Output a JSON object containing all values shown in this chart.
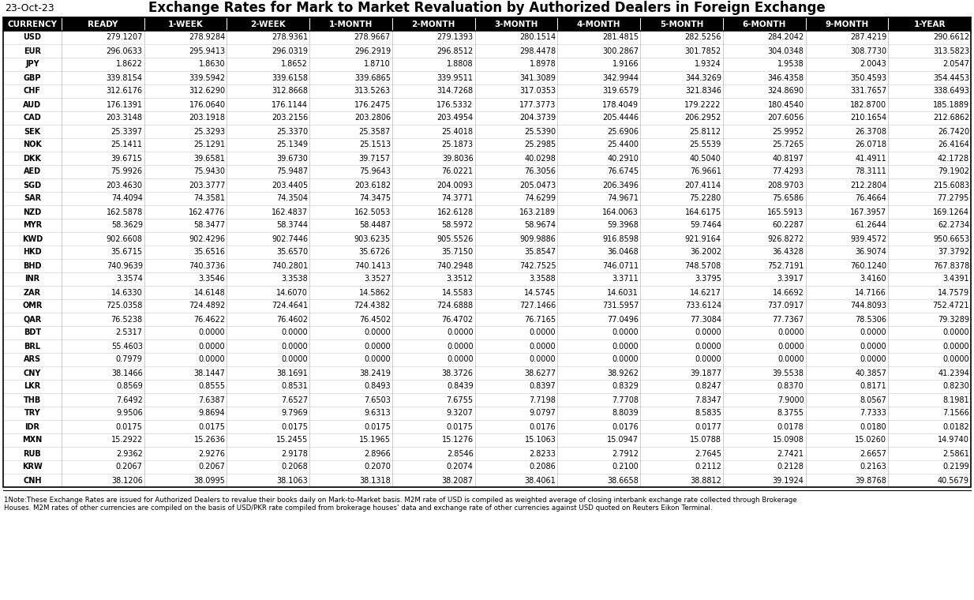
{
  "date": "23-Oct-23",
  "title": "Exchange Rates for Mark to Market Revaluation by Authorized Dealers in Foreign Exchange",
  "columns": [
    "CURRENCY",
    "READY",
    "1-WEEK",
    "2-WEEK",
    "1-MONTH",
    "2-MONTH",
    "3-MONTH",
    "4-MONTH",
    "5-MONTH",
    "6-MONTH",
    "9-MONTH",
    "1-YEAR"
  ],
  "rows": [
    [
      "USD",
      "279.1207",
      "278.9284",
      "278.9361",
      "278.9667",
      "279.1393",
      "280.1514",
      "281.4815",
      "282.5256",
      "284.2042",
      "287.4219",
      "290.6612"
    ],
    [
      "EUR",
      "296.0633",
      "295.9413",
      "296.0319",
      "296.2919",
      "296.8512",
      "298.4478",
      "300.2867",
      "301.7852",
      "304.0348",
      "308.7730",
      "313.5823"
    ],
    [
      "JPY",
      "1.8622",
      "1.8630",
      "1.8652",
      "1.8710",
      "1.8808",
      "1.8978",
      "1.9166",
      "1.9324",
      "1.9538",
      "2.0043",
      "2.0547"
    ],
    [
      "GBP",
      "339.8154",
      "339.5942",
      "339.6158",
      "339.6865",
      "339.9511",
      "341.3089",
      "342.9944",
      "344.3269",
      "346.4358",
      "350.4593",
      "354.4453"
    ],
    [
      "CHF",
      "312.6176",
      "312.6290",
      "312.8668",
      "313.5263",
      "314.7268",
      "317.0353",
      "319.6579",
      "321.8346",
      "324.8690",
      "331.7657",
      "338.6493"
    ],
    [
      "AUD",
      "176.1391",
      "176.0640",
      "176.1144",
      "176.2475",
      "176.5332",
      "177.3773",
      "178.4049",
      "179.2222",
      "180.4540",
      "182.8700",
      "185.1889"
    ],
    [
      "CAD",
      "203.3148",
      "203.1918",
      "203.2156",
      "203.2806",
      "203.4954",
      "204.3739",
      "205.4446",
      "206.2952",
      "207.6056",
      "210.1654",
      "212.6862"
    ],
    [
      "SEK",
      "25.3397",
      "25.3293",
      "25.3370",
      "25.3587",
      "25.4018",
      "25.5390",
      "25.6906",
      "25.8112",
      "25.9952",
      "26.3708",
      "26.7420"
    ],
    [
      "NOK",
      "25.1411",
      "25.1291",
      "25.1349",
      "25.1513",
      "25.1873",
      "25.2985",
      "25.4400",
      "25.5539",
      "25.7265",
      "26.0718",
      "26.4164"
    ],
    [
      "DKK",
      "39.6715",
      "39.6581",
      "39.6730",
      "39.7157",
      "39.8036",
      "40.0298",
      "40.2910",
      "40.5040",
      "40.8197",
      "41.4911",
      "42.1728"
    ],
    [
      "AED",
      "75.9926",
      "75.9430",
      "75.9487",
      "75.9643",
      "76.0221",
      "76.3056",
      "76.6745",
      "76.9661",
      "77.4293",
      "78.3111",
      "79.1902"
    ],
    [
      "SGD",
      "203.4630",
      "203.3777",
      "203.4405",
      "203.6182",
      "204.0093",
      "205.0473",
      "206.3496",
      "207.4114",
      "208.9703",
      "212.2804",
      "215.6083"
    ],
    [
      "SAR",
      "74.4094",
      "74.3581",
      "74.3504",
      "74.3475",
      "74.3771",
      "74.6299",
      "74.9671",
      "75.2280",
      "75.6586",
      "76.4664",
      "77.2795"
    ],
    [
      "NZD",
      "162.5878",
      "162.4776",
      "162.4837",
      "162.5053",
      "162.6128",
      "163.2189",
      "164.0063",
      "164.6175",
      "165.5913",
      "167.3957",
      "169.1264"
    ],
    [
      "MYR",
      "58.3629",
      "58.3477",
      "58.3744",
      "58.4487",
      "58.5972",
      "58.9674",
      "59.3968",
      "59.7464",
      "60.2287",
      "61.2644",
      "62.2734"
    ],
    [
      "KWD",
      "902.6608",
      "902.4296",
      "902.7446",
      "903.6235",
      "905.5526",
      "909.9886",
      "916.8598",
      "921.9164",
      "926.8272",
      "939.4572",
      "950.6653"
    ],
    [
      "HKD",
      "35.6715",
      "35.6516",
      "35.6570",
      "35.6726",
      "35.7150",
      "35.8547",
      "36.0468",
      "36.2002",
      "36.4328",
      "36.9074",
      "37.3792"
    ],
    [
      "BHD",
      "740.9639",
      "740.3736",
      "740.2801",
      "740.1413",
      "740.2948",
      "742.7525",
      "746.0711",
      "748.5708",
      "752.7191",
      "760.1240",
      "767.8378"
    ],
    [
      "INR",
      "3.3574",
      "3.3546",
      "3.3538",
      "3.3527",
      "3.3512",
      "3.3588",
      "3.3711",
      "3.3795",
      "3.3917",
      "3.4160",
      "3.4391"
    ],
    [
      "ZAR",
      "14.6330",
      "14.6148",
      "14.6070",
      "14.5862",
      "14.5583",
      "14.5745",
      "14.6031",
      "14.6217",
      "14.6692",
      "14.7166",
      "14.7579"
    ],
    [
      "OMR",
      "725.0358",
      "724.4892",
      "724.4641",
      "724.4382",
      "724.6888",
      "727.1466",
      "731.5957",
      "733.6124",
      "737.0917",
      "744.8093",
      "752.4721"
    ],
    [
      "QAR",
      "76.5238",
      "76.4622",
      "76.4602",
      "76.4502",
      "76.4702",
      "76.7165",
      "77.0496",
      "77.3084",
      "77.7367",
      "78.5306",
      "79.3289"
    ],
    [
      "BDT",
      "2.5317",
      "0.0000",
      "0.0000",
      "0.0000",
      "0.0000",
      "0.0000",
      "0.0000",
      "0.0000",
      "0.0000",
      "0.0000",
      "0.0000"
    ],
    [
      "BRL",
      "55.4603",
      "0.0000",
      "0.0000",
      "0.0000",
      "0.0000",
      "0.0000",
      "0.0000",
      "0.0000",
      "0.0000",
      "0.0000",
      "0.0000"
    ],
    [
      "ARS",
      "0.7979",
      "0.0000",
      "0.0000",
      "0.0000",
      "0.0000",
      "0.0000",
      "0.0000",
      "0.0000",
      "0.0000",
      "0.0000",
      "0.0000"
    ],
    [
      "CNY",
      "38.1466",
      "38.1447",
      "38.1691",
      "38.2419",
      "38.3726",
      "38.6277",
      "38.9262",
      "39.1877",
      "39.5538",
      "40.3857",
      "41.2394"
    ],
    [
      "LKR",
      "0.8569",
      "0.8555",
      "0.8531",
      "0.8493",
      "0.8439",
      "0.8397",
      "0.8329",
      "0.8247",
      "0.8370",
      "0.8171",
      "0.8230"
    ],
    [
      "THB",
      "7.6492",
      "7.6387",
      "7.6527",
      "7.6503",
      "7.6755",
      "7.7198",
      "7.7708",
      "7.8347",
      "7.9000",
      "8.0567",
      "8.1981"
    ],
    [
      "TRY",
      "9.9506",
      "9.8694",
      "9.7969",
      "9.6313",
      "9.3207",
      "9.0797",
      "8.8039",
      "8.5835",
      "8.3755",
      "7.7333",
      "7.1566"
    ],
    [
      "IDR",
      "0.0175",
      "0.0175",
      "0.0175",
      "0.0175",
      "0.0175",
      "0.0176",
      "0.0176",
      "0.0177",
      "0.0178",
      "0.0180",
      "0.0182"
    ],
    [
      "MXN",
      "15.2922",
      "15.2636",
      "15.2455",
      "15.1965",
      "15.1276",
      "15.1063",
      "15.0947",
      "15.0788",
      "15.0908",
      "15.0260",
      "14.9740"
    ],
    [
      "RUB",
      "2.9362",
      "2.9276",
      "2.9178",
      "2.8966",
      "2.8546",
      "2.8233",
      "2.7912",
      "2.7645",
      "2.7421",
      "2.6657",
      "2.5861"
    ],
    [
      "KRW",
      "0.2067",
      "0.2067",
      "0.2068",
      "0.2070",
      "0.2074",
      "0.2086",
      "0.2100",
      "0.2112",
      "0.2128",
      "0.2163",
      "0.2199"
    ],
    [
      "CNH",
      "38.1206",
      "38.0995",
      "38.1063",
      "38.1318",
      "38.2087",
      "38.4061",
      "38.6658",
      "38.8812",
      "39.1924",
      "39.8768",
      "40.5679"
    ]
  ],
  "footnote_line1": "1Note:These Exchange Rates are issued for Authorized Dealers to revalue their books daily on Mark-to-Market basis. M2M rate of USD is compiled as weighted average of closing interbank exchange rate collected through Brokerage",
  "footnote_line2": "Houses. M2M rates of other currencies are compiled on the basis of USD/PKR rate compiled from brokerage houses' data and exchange rate of other currencies against USD quoted on Reuters Eikon Terminal.",
  "header_bg": "#000000",
  "header_fg": "#ffffff",
  "title_fontsize": 12,
  "date_fontsize": 9,
  "header_fontsize": 7.5,
  "cell_fontsize": 7.0,
  "footnote_fontsize": 6.2
}
